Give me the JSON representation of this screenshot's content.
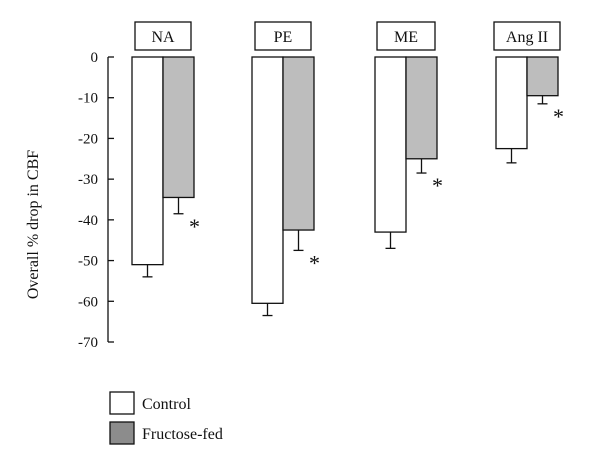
{
  "chart_data": {
    "type": "bar",
    "title": "",
    "xlabel": "",
    "ylabel": "Overall % drop in CBF",
    "ylim": [
      -70,
      0
    ],
    "yticks": [
      0,
      -10,
      -20,
      -30,
      -40,
      -50,
      -60,
      -70
    ],
    "ytick_labels": [
      "0",
      "-10",
      "-20",
      "-30",
      "-40",
      "-50",
      "-60",
      "-70"
    ],
    "categories": [
      "NA",
      "PE",
      "ME",
      "Ang II"
    ],
    "series": [
      {
        "name": "Control",
        "color": "#ffffff",
        "values": [
          -51,
          -60.5,
          -43,
          -22.5
        ],
        "error": [
          3,
          3,
          4,
          3.5
        ]
      },
      {
        "name": "Fructose-fed",
        "color": "#b8b8b8",
        "values": [
          -34.5,
          -42.5,
          -25,
          -9.5
        ],
        "error": [
          4,
          5,
          3.5,
          2
        ]
      }
    ],
    "significance": {
      "symbol": "*",
      "series": "Fructose-fed",
      "categories": [
        "NA",
        "PE",
        "ME",
        "Ang II"
      ]
    },
    "grid": false,
    "legend_position": "bottom-left"
  },
  "legend": {
    "items": [
      {
        "label": "Control",
        "color": "#ffffff"
      },
      {
        "label": "Fructose-fed",
        "color": "#8c8c8c"
      }
    ]
  }
}
